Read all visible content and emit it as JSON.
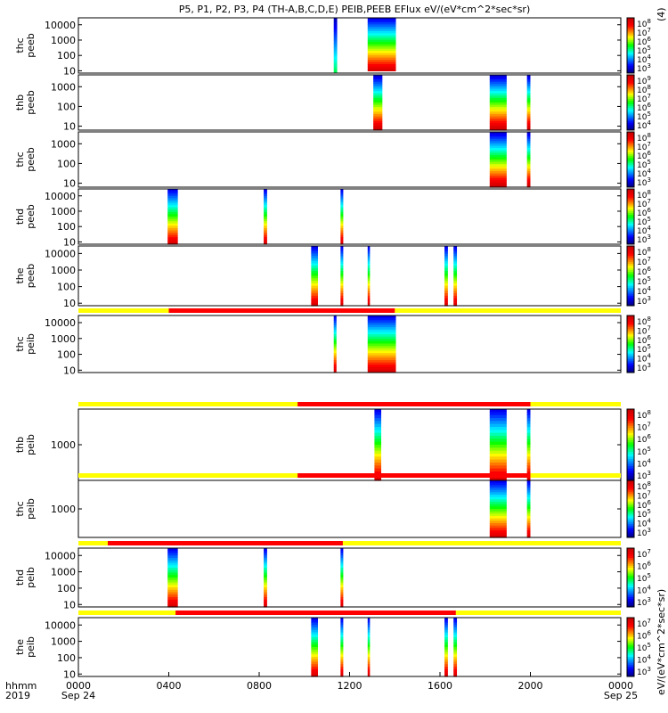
{
  "chart_data": {
    "type": "heatmap",
    "title": "P5, P1, P2, P3, P4 (TH-A,B,C,D,E) PEIB,PEEB EFlux eV/(eV*cm^2*sec*sr)",
    "x_axis": {
      "row_label": "hhmm",
      "year_label": "2019",
      "ticks": [
        "0000",
        "0400",
        "0800",
        "1200",
        "1600",
        "2000",
        "0000"
      ],
      "tick_hours": [
        0,
        4,
        8,
        12,
        16,
        20,
        24
      ],
      "date_labels": [
        {
          "hour": 0,
          "text": "Sep 24"
        },
        {
          "hour": 24,
          "text": "Sep 25"
        }
      ],
      "range_hours": [
        0,
        24
      ]
    },
    "colorbar": {
      "left_label": "eV/(eV*cm^2*sec*sr)",
      "right_label": "(4)"
    },
    "panels": [
      {
        "ylabel": [
          "thc",
          "peeb"
        ],
        "yticks": [
          "10000",
          "1000",
          "100",
          "10"
        ],
        "log_range": [
          0.85,
          4.45
        ],
        "bursts": [
          {
            "start": 11.3,
            "end": 11.45,
            "hi": 4.45,
            "lo": 0.9,
            "mode": "blue"
          },
          {
            "start": 12.8,
            "end": 14.05,
            "hi": 4.45,
            "lo": 1.0,
            "mode": "mix"
          }
        ],
        "colorbar_ticks": [
          "10^8",
          "10^7",
          "10^6",
          "10^5",
          "10^4",
          "10^3"
        ]
      },
      {
        "ylabel": [
          "thb",
          "peeb"
        ],
        "yticks": [
          "1000",
          "100",
          "10"
        ],
        "log_range": [
          0.8,
          3.6
        ],
        "bursts": [
          {
            "start": 13.05,
            "end": 13.45,
            "hi": 3.6,
            "lo": 0.8,
            "mode": "warm"
          },
          {
            "start": 18.2,
            "end": 18.95,
            "hi": 3.6,
            "lo": 0.8,
            "mode": "warm"
          },
          {
            "start": 19.85,
            "end": 20.0,
            "hi": 3.6,
            "lo": 0.8,
            "mode": "warm"
          }
        ],
        "colorbar_ticks": [
          "10^9",
          "10^8",
          "10^7",
          "10^6",
          "10^5",
          "10^4"
        ]
      },
      {
        "ylabel": [
          "thc",
          "peeb"
        ],
        "yticks": [
          "1000",
          "100",
          "10"
        ],
        "log_range": [
          0.8,
          3.6
        ],
        "bursts": [
          {
            "start": 18.2,
            "end": 18.95,
            "hi": 3.6,
            "lo": 0.8,
            "mode": "warm"
          },
          {
            "start": 19.85,
            "end": 20.0,
            "hi": 3.6,
            "lo": 0.8,
            "mode": "warm"
          }
        ],
        "colorbar_ticks": [
          "10^8",
          "10^7",
          "10^6",
          "10^5",
          "10^4",
          "10^3"
        ]
      },
      {
        "ylabel": [
          "thd",
          "peeb"
        ],
        "yticks": [
          "10000",
          "1000",
          "100",
          "10"
        ],
        "log_range": [
          0.85,
          4.45
        ],
        "bursts": [
          {
            "start": 3.95,
            "end": 4.4,
            "hi": 4.45,
            "lo": 0.85,
            "mode": "mix"
          },
          {
            "start": 8.2,
            "end": 8.35,
            "hi": 4.45,
            "lo": 0.85,
            "mode": "mix"
          },
          {
            "start": 11.6,
            "end": 11.72,
            "hi": 4.45,
            "lo": 0.85,
            "mode": "mix"
          }
        ],
        "colorbar_ticks": [
          "10^8",
          "10^7",
          "10^6",
          "10^5",
          "10^4",
          "10^3"
        ]
      },
      {
        "ylabel": [
          "the",
          "peeb"
        ],
        "yticks": [
          "10000",
          "1000",
          "100",
          "10"
        ],
        "log_range": [
          0.85,
          4.45
        ],
        "bursts": [
          {
            "start": 10.3,
            "end": 10.6,
            "hi": 4.45,
            "lo": 0.85,
            "mode": "mix"
          },
          {
            "start": 11.6,
            "end": 11.72,
            "hi": 4.45,
            "lo": 0.85,
            "mode": "mix"
          },
          {
            "start": 12.8,
            "end": 12.9,
            "hi": 4.45,
            "lo": 0.85,
            "mode": "mix"
          },
          {
            "start": 16.2,
            "end": 16.35,
            "hi": 4.45,
            "lo": 0.85,
            "mode": "mix"
          },
          {
            "start": 16.6,
            "end": 16.75,
            "hi": 4.45,
            "lo": 0.85,
            "mode": "mix"
          }
        ],
        "colorbar_ticks": [
          "10^8",
          "10^7",
          "10^6",
          "10^5",
          "10^4",
          "10^3"
        ]
      },
      {
        "ylabel": [
          "thc",
          "peib"
        ],
        "yticks": [
          "10000",
          "1000",
          "100",
          "10"
        ],
        "log_range": [
          0.85,
          4.45
        ],
        "status": {
          "red_start": 4.0,
          "red_end": 14.0
        },
        "bursts": [
          {
            "start": 11.3,
            "end": 11.42,
            "hi": 4.45,
            "lo": 0.9,
            "mode": "mix"
          },
          {
            "start": 12.8,
            "end": 14.05,
            "hi": 4.45,
            "lo": 0.9,
            "mode": "mix"
          }
        ],
        "colorbar_ticks": [
          "10^8",
          "10^7",
          "10^6",
          "10^5",
          "10^4",
          "10^3"
        ]
      },
      {
        "ylabel": [
          "thb",
          "peib"
        ],
        "yticks": [
          "1000"
        ],
        "log_range": [
          2.0,
          4.0
        ],
        "status": {
          "red_start": 9.7,
          "red_end": 20.0
        },
        "bursts": [
          {
            "start": 13.1,
            "end": 13.4,
            "hi": 4.0,
            "lo": 2.0,
            "mode": "mix"
          },
          {
            "start": 18.2,
            "end": 18.95,
            "hi": 4.0,
            "lo": 2.0,
            "mode": "mix"
          },
          {
            "start": 19.85,
            "end": 20.0,
            "hi": 4.0,
            "lo": 2.0,
            "mode": "mix"
          }
        ],
        "colorbar_ticks": [
          "10^8",
          "10^7",
          "10^6",
          "10^5",
          "10^4",
          "10^3"
        ]
      },
      {
        "ylabel": [
          "thc",
          "peib"
        ],
        "yticks": [
          "1000"
        ],
        "log_range": [
          2.0,
          4.0
        ],
        "status": {
          "red_start": 9.7,
          "red_end": 20.0
        },
        "bursts": [
          {
            "start": 18.2,
            "end": 18.95,
            "hi": 4.0,
            "lo": 2.0,
            "mode": "mix"
          },
          {
            "start": 19.85,
            "end": 20.0,
            "hi": 4.0,
            "lo": 2.0,
            "mode": "mix"
          }
        ],
        "colorbar_ticks": [
          "10^8",
          "10^7",
          "10^6",
          "10^5",
          "10^4",
          "10^3"
        ]
      },
      {
        "ylabel": [
          "thd",
          "peib"
        ],
        "yticks": [
          "10000",
          "1000",
          "100",
          "10"
        ],
        "log_range": [
          0.85,
          4.45
        ],
        "status": {
          "red_start": 1.3,
          "red_end": 11.7
        },
        "bursts": [
          {
            "start": 3.95,
            "end": 4.4,
            "hi": 4.45,
            "lo": 0.85,
            "mode": "mix"
          },
          {
            "start": 8.2,
            "end": 8.35,
            "hi": 4.45,
            "lo": 0.85,
            "mode": "mix"
          },
          {
            "start": 11.6,
            "end": 11.72,
            "hi": 4.45,
            "lo": 0.85,
            "mode": "mix"
          }
        ],
        "colorbar_ticks": [
          "10^7",
          "10^6",
          "10^5",
          "10^4",
          "10^3"
        ]
      },
      {
        "ylabel": [
          "the",
          "peib"
        ],
        "yticks": [
          "10000",
          "1000",
          "100",
          "10"
        ],
        "log_range": [
          0.85,
          4.45
        ],
        "status": {
          "red_start": 4.3,
          "red_end": 16.7
        },
        "bursts": [
          {
            "start": 10.3,
            "end": 10.6,
            "hi": 4.45,
            "lo": 0.85,
            "mode": "mix"
          },
          {
            "start": 11.6,
            "end": 11.72,
            "hi": 4.45,
            "lo": 0.85,
            "mode": "mix"
          },
          {
            "start": 12.8,
            "end": 12.9,
            "hi": 4.45,
            "lo": 0.85,
            "mode": "mix"
          },
          {
            "start": 16.2,
            "end": 16.35,
            "hi": 4.45,
            "lo": 0.85,
            "mode": "mix"
          },
          {
            "start": 16.6,
            "end": 16.75,
            "hi": 4.45,
            "lo": 0.85,
            "mode": "mix"
          }
        ],
        "colorbar_ticks": [
          "10^7",
          "10^6",
          "10^5",
          "10^4",
          "10^3"
        ]
      }
    ],
    "colors": {
      "status_yellow": "#ffff00",
      "status_red": "#ff0000",
      "axis": "#000000"
    }
  }
}
